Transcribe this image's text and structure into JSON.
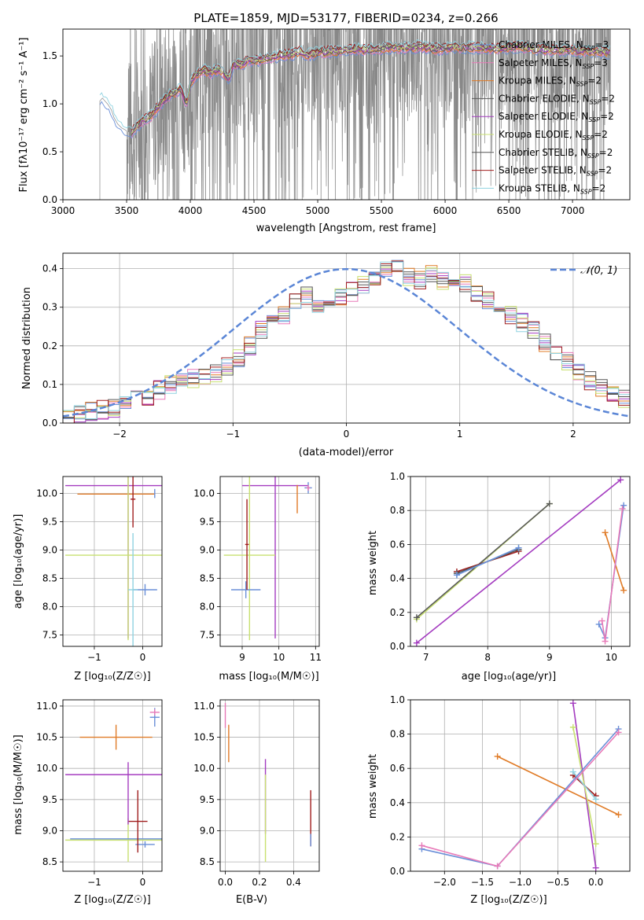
{
  "colors": {
    "chabrier_miles": "#6a8fd8",
    "salpeter_miles": "#e87ab8",
    "kroupa_miles": "#e07b27",
    "chabrier_elodie": "#5a5a5a",
    "salpeter_elodie": "#a43cc0",
    "kroupa_elodie": "#c8e070",
    "chabrier_stelib": "#555555",
    "salpeter_stelib": "#a01e1e",
    "kroupa_stelib": "#8fd2e0",
    "observed": "#888888",
    "gaussian": "#5b86d6",
    "grid": "#b0b0b0"
  },
  "chart_data": [
    {
      "id": "spectrum",
      "type": "line",
      "title": "PLATE=1859, MJD=53177, FIBERID=0234, z=0.266",
      "xlabel": "wavelength [Angstrom, rest frame]",
      "ylabel": "Flux [f$_\\lambda$ 10$^{-17}$ erg cm$^{-2}$ s$^{-1}$ A$^{-1}$]",
      "ylabel_display": "Flux [fλ10⁻¹⁷ erg cm⁻² s⁻¹ A⁻¹]",
      "xlim": [
        3000,
        7450
      ],
      "ylim": [
        0,
        1.78
      ],
      "xticks": [
        "3000",
        "3500",
        "4000",
        "4500",
        "5000",
        "5500",
        "6000",
        "6500",
        "7000"
      ],
      "yticks": [
        "0.0",
        "0.5",
        "1.0",
        "1.5"
      ],
      "legend_position": "right",
      "legend": [
        {
          "label": "Chabrier MILES, N",
          "sub": "SSP",
          "tail": "=3",
          "color_key": "chabrier_miles"
        },
        {
          "label": "Salpeter MILES, N",
          "sub": "SSP",
          "tail": "=3",
          "color_key": "salpeter_miles"
        },
        {
          "label": "Kroupa MILES, N",
          "sub": "SSP",
          "tail": "=2",
          "color_key": "kroupa_miles"
        },
        {
          "label": "Chabrier ELODIE, N",
          "sub": "SSP",
          "tail": "=2",
          "color_key": "chabrier_elodie"
        },
        {
          "label": "Salpeter ELODIE, N",
          "sub": "SSP",
          "tail": "=2",
          "color_key": "salpeter_elodie"
        },
        {
          "label": "Kroupa ELODIE, N",
          "sub": "SSP",
          "tail": "=2",
          "color_key": "kroupa_elodie"
        },
        {
          "label": "Chabrier STELIB, N",
          "sub": "SSP",
          "tail": "=2",
          "color_key": "chabrier_stelib"
        },
        {
          "label": "Salpeter STELIB, N",
          "sub": "SSP",
          "tail": "=2",
          "color_key": "salpeter_stelib"
        },
        {
          "label": "Kroupa STELIB, N",
          "sub": "SSP",
          "tail": "=2",
          "color_key": "kroupa_stelib"
        }
      ],
      "observed_start": 3290,
      "observed_noise_from": 3500,
      "model_curve": [
        [
          3290,
          1.03
        ],
        [
          3310,
          1.06
        ],
        [
          3350,
          1.0
        ],
        [
          3380,
          0.94
        ],
        [
          3400,
          0.86
        ],
        [
          3430,
          0.79
        ],
        [
          3460,
          0.75
        ],
        [
          3500,
          0.72
        ],
        [
          3540,
          0.7
        ],
        [
          3580,
          0.76
        ],
        [
          3620,
          0.82
        ],
        [
          3680,
          0.86
        ],
        [
          3720,
          0.92
        ],
        [
          3780,
          1.02
        ],
        [
          3830,
          1.08
        ],
        [
          3880,
          1.12
        ],
        [
          3930,
          1.15
        ],
        [
          3970,
          0.98
        ],
        [
          4000,
          1.22
        ],
        [
          4050,
          1.3
        ],
        [
          4100,
          1.36
        ],
        [
          4150,
          1.32
        ],
        [
          4200,
          1.35
        ],
        [
          4250,
          1.34
        ],
        [
          4300,
          1.25
        ],
        [
          4340,
          1.42
        ],
        [
          4400,
          1.4
        ],
        [
          4450,
          1.46
        ],
        [
          4500,
          1.45
        ],
        [
          4600,
          1.47
        ],
        [
          4700,
          1.5
        ],
        [
          4800,
          1.52
        ],
        [
          4862,
          1.55
        ],
        [
          4900,
          1.51
        ],
        [
          5000,
          1.53
        ],
        [
          5100,
          1.55
        ],
        [
          5200,
          1.55
        ],
        [
          5300,
          1.57
        ],
        [
          5400,
          1.56
        ],
        [
          5500,
          1.58
        ],
        [
          5600,
          1.59
        ],
        [
          5700,
          1.58
        ],
        [
          5800,
          1.6
        ],
        [
          5890,
          1.57
        ],
        [
          6000,
          1.58
        ],
        [
          6200,
          1.59
        ],
        [
          6400,
          1.57
        ],
        [
          6563,
          1.6
        ],
        [
          6700,
          1.57
        ],
        [
          6900,
          1.56
        ],
        [
          7100,
          1.55
        ],
        [
          7300,
          1.54
        ]
      ]
    },
    {
      "id": "residuals",
      "type": "histogram",
      "xlabel": "(data-model)/error",
      "ylabel": "Normed distribution",
      "xlim": [
        -2.5,
        2.5
      ],
      "ylim": [
        0,
        0.44
      ],
      "xticks": [
        "−2",
        "−1",
        "0",
        "1",
        "2"
      ],
      "yticks": [
        "0.0",
        "0.1",
        "0.2",
        "0.3",
        "0.4"
      ],
      "legend_label": "𝒩(0, 1)",
      "legend_position": "top-right",
      "bin_start": -2.5,
      "bin_width": 0.1,
      "values": [
        0.02,
        0.025,
        0.03,
        0.035,
        0.04,
        0.05,
        0.06,
        0.07,
        0.085,
        0.1,
        0.105,
        0.115,
        0.12,
        0.13,
        0.145,
        0.17,
        0.2,
        0.24,
        0.26,
        0.28,
        0.31,
        0.33,
        0.3,
        0.31,
        0.33,
        0.34,
        0.36,
        0.38,
        0.4,
        0.41,
        0.38,
        0.37,
        0.39,
        0.37,
        0.38,
        0.36,
        0.34,
        0.32,
        0.3,
        0.28,
        0.26,
        0.24,
        0.21,
        0.18,
        0.16,
        0.13,
        0.11,
        0.09,
        0.075,
        0.06
      ]
    },
    {
      "id": "Z_vs_age",
      "type": "errorbar",
      "xlabel": "Z [log₁₀(Z/Z☉)]",
      "ylabel": "age  [log₁₀(age/yr)]",
      "xlim": [
        -1.65,
        0.4
      ],
      "ylim": [
        7.3,
        10.3
      ],
      "xticks": [
        "−1",
        "0"
      ],
      "yticks": [
        "7.5",
        "8.0",
        "8.5",
        "9.0",
        "9.5",
        "10.0"
      ],
      "points": [
        {
          "color_key": "salpeter_elodie",
          "x": -0.3,
          "xerr": 1.3,
          "y": 10.14,
          "yerr": 2.7
        },
        {
          "color_key": "kroupa_miles",
          "x": -0.55,
          "xerr": 0.8,
          "y": 9.99,
          "yerr": 0.0
        },
        {
          "color_key": "kroupa_elodie",
          "x": -0.3,
          "xerr": 1.3,
          "y": 8.91,
          "yerr": 1.5
        },
        {
          "color_key": "chabrier_miles",
          "x": 0.05,
          "xerr": 0.25,
          "y": 8.3,
          "yerr": 0.1
        },
        {
          "color_key": "kroupa_stelib",
          "x": -0.2,
          "xerr": 0.1,
          "y": 8.3,
          "yerr": 1.0
        },
        {
          "color_key": "salpeter_stelib",
          "x": -0.2,
          "xerr": 0.05,
          "y": 9.9,
          "yerr": 0.5
        },
        {
          "color_key": "chabrier_miles",
          "x": 0.25,
          "xerr": 0.0,
          "y": 10.0,
          "yerr": 0.08
        }
      ]
    },
    {
      "id": "mass_vs_age",
      "type": "errorbar",
      "xlabel": "mass [log₁₀(M/M☉)]",
      "ylabel": "",
      "xlim": [
        8.4,
        11.1
      ],
      "ylim": [
        7.3,
        10.3
      ],
      "xticks": [
        "9",
        "10",
        "11"
      ],
      "yticks": [
        "7.5",
        "8.0",
        "8.5",
        "9.0",
        "9.5",
        "10.0"
      ],
      "points": [
        {
          "color_key": "salpeter_elodie",
          "x": 9.9,
          "xerr": 0.9,
          "y": 10.14,
          "yerr": 2.7
        },
        {
          "color_key": "kroupa_elodie",
          "x": 9.2,
          "xerr": 0.7,
          "y": 8.91,
          "yerr": 1.5
        },
        {
          "color_key": "chabrier_miles",
          "x": 9.1,
          "xerr": 0.4,
          "y": 8.3,
          "yerr": 0.15
        },
        {
          "color_key": "salpeter_stelib",
          "x": 9.13,
          "xerr": 0.05,
          "y": 9.1,
          "yerr": 0.8
        },
        {
          "color_key": "kroupa_miles",
          "x": 10.5,
          "xerr": 0.0,
          "y": 9.9,
          "yerr": 0.25
        },
        {
          "color_key": "chabrier_miles",
          "x": 10.8,
          "xerr": 0.1,
          "y": 10.1,
          "yerr": 0.1
        },
        {
          "color_key": "salpeter_miles",
          "x": 10.8,
          "xerr": 0.05,
          "y": 10.1,
          "yerr": 0.05
        }
      ]
    },
    {
      "id": "age_vs_weight",
      "type": "line",
      "xlabel": "age  [log₁₀(age/yr)]",
      "ylabel": "mass weight",
      "xlim": [
        6.75,
        10.3
      ],
      "ylim": [
        0,
        1.0
      ],
      "xticks": [
        "7",
        "8",
        "9",
        "10"
      ],
      "yticks": [
        "0.0",
        "0.2",
        "0.4",
        "0.6",
        "0.8",
        "1.0"
      ],
      "series": [
        {
          "color_key": "salpeter_elodie",
          "points": [
            [
              6.85,
              0.02
            ],
            [
              10.15,
              0.98
            ]
          ]
        },
        {
          "color_key": "kroupa_elodie",
          "points": [
            [
              6.85,
              0.16
            ],
            [
              9.0,
              0.84
            ]
          ]
        },
        {
          "color_key": "chabrier_elodie",
          "points": [
            [
              6.85,
              0.17
            ],
            [
              9.0,
              0.84
            ]
          ]
        },
        {
          "color_key": "salpeter_stelib",
          "points": [
            [
              7.5,
              0.44
            ],
            [
              8.5,
              0.56
            ]
          ]
        },
        {
          "color_key": "chabrier_stelib",
          "points": [
            [
              7.5,
              0.43
            ],
            [
              8.5,
              0.57
            ]
          ]
        },
        {
          "color_key": "kroupa_stelib",
          "points": [
            [
              7.5,
              0.42
            ],
            [
              8.5,
              0.58
            ]
          ]
        },
        {
          "color_key": "chabrier_miles",
          "points": [
            [
              7.5,
              0.42
            ],
            [
              8.5,
              0.58
            ]
          ]
        },
        {
          "color_key": "kroupa_miles",
          "points": [
            [
              9.9,
              0.67
            ],
            [
              10.2,
              0.33
            ]
          ]
        },
        {
          "color_key": "chabrier_miles",
          "points": [
            [
              9.8,
              0.13
            ],
            [
              9.9,
              0.05
            ],
            [
              10.2,
              0.83
            ]
          ]
        },
        {
          "color_key": "salpeter_miles",
          "points": [
            [
              9.85,
              0.15
            ],
            [
              9.9,
              0.03
            ],
            [
              10.18,
              0.81
            ]
          ]
        }
      ]
    },
    {
      "id": "Z_vs_mass",
      "type": "errorbar",
      "xlabel": "Z [log₁₀(Z/Z☉)]",
      "ylabel": "mass [log₁₀(M/M☉)]",
      "xlim": [
        -1.65,
        0.4
      ],
      "ylim": [
        8.35,
        11.1
      ],
      "xticks": [
        "−1",
        "0"
      ],
      "yticks": [
        "8.5",
        "9.0",
        "9.5",
        "10.0",
        "10.5",
        "11.0"
      ],
      "points": [
        {
          "color_key": "salpeter_elodie",
          "x": -0.3,
          "xerr": 1.3,
          "y": 9.9,
          "yerr": 0.0
        },
        {
          "color_key": "kroupa_miles",
          "x": -0.55,
          "xerr": 0.75,
          "y": 10.5,
          "yerr": 0.2
        },
        {
          "color_key": "kroupa_elodie",
          "x": -0.3,
          "xerr": 1.3,
          "y": 8.85,
          "yerr": 0.35
        },
        {
          "color_key": "chabrier_miles",
          "x": -0.5,
          "xerr": 1.0,
          "y": 8.87,
          "yerr": 0.0
        },
        {
          "color_key": "chabrier_miles",
          "x": 0.05,
          "xerr": 0.2,
          "y": 8.78,
          "yerr": 0.05
        },
        {
          "color_key": "salpeter_stelib",
          "x": -0.1,
          "xerr": 0.2,
          "y": 9.15,
          "yerr": 0.5
        },
        {
          "color_key": "salpeter_elodie",
          "x": -0.3,
          "xerr": 0.0,
          "y": 9.6,
          "yerr": 0.5
        },
        {
          "color_key": "chabrier_miles",
          "x": 0.25,
          "xerr": 0.1,
          "y": 10.82,
          "yerr": 0.15
        },
        {
          "color_key": "salpeter_miles",
          "x": 0.25,
          "xerr": 0.1,
          "y": 10.9,
          "yerr": 0.05
        }
      ]
    },
    {
      "id": "ebv_vs_mass",
      "type": "errorbar",
      "xlabel": "E(B-V)",
      "ylabel": "",
      "xlim": [
        -0.03,
        0.55
      ],
      "ylim": [
        8.35,
        11.1
      ],
      "xticks": [
        "0.0",
        "0.2",
        "0.4"
      ],
      "yticks": [
        "8.5",
        "9.0",
        "9.5",
        "10.0",
        "10.5",
        "11.0"
      ],
      "points": [
        {
          "color_key": "salpeter_miles",
          "x": 0.0,
          "xerr": 0.0,
          "y": 10.85,
          "yerr": 0.2
        },
        {
          "color_key": "kroupa_miles",
          "x": 0.02,
          "xerr": 0.0,
          "y": 10.4,
          "yerr": 0.3
        },
        {
          "color_key": "salpeter_elodie",
          "x": 0.235,
          "xerr": 0.0,
          "y": 9.55,
          "yerr": 0.6
        },
        {
          "color_key": "kroupa_elodie",
          "x": 0.235,
          "xerr": 0.0,
          "y": 9.2,
          "yerr": 0.7
        },
        {
          "color_key": "salpeter_stelib",
          "x": 0.5,
          "xerr": 0.0,
          "y": 9.2,
          "yerr": 0.45
        },
        {
          "color_key": "chabrier_miles",
          "x": 0.5,
          "xerr": 0.0,
          "y": 8.85,
          "yerr": 0.1
        }
      ]
    },
    {
      "id": "Z_vs_weight",
      "type": "line",
      "xlabel": "Z [log₁₀(Z/Z☉)]",
      "ylabel": "mass weight",
      "xlim": [
        -2.45,
        0.45
      ],
      "ylim": [
        0,
        1.0
      ],
      "xticks": [
        "−2.0",
        "−1.5",
        "−1.0",
        "−0.5",
        "0.0"
      ],
      "yticks": [
        "0.0",
        "0.2",
        "0.4",
        "0.6",
        "0.8",
        "1.0"
      ],
      "series": [
        {
          "color_key": "kroupa_miles",
          "points": [
            [
              -1.3,
              0.67
            ],
            [
              0.3,
              0.33
            ]
          ]
        },
        {
          "color_key": "salpeter_elodie",
          "points": [
            [
              -0.3,
              0.98
            ],
            [
              0.0,
              0.02
            ]
          ]
        },
        {
          "color_key": "kroupa_elodie",
          "points": [
            [
              -0.3,
              0.84
            ],
            [
              0.0,
              0.16
            ]
          ]
        },
        {
          "color_key": "salpeter_stelib",
          "points": [
            [
              -0.3,
              0.56
            ],
            [
              0.0,
              0.44
            ]
          ]
        },
        {
          "color_key": "kroupa_stelib",
          "points": [
            [
              -0.3,
              0.58
            ],
            [
              0.0,
              0.42
            ]
          ]
        },
        {
          "color_key": "chabrier_miles",
          "points": [
            [
              -2.3,
              0.13
            ],
            [
              -1.3,
              0.03
            ],
            [
              0.3,
              0.83
            ]
          ]
        },
        {
          "color_key": "salpeter_miles",
          "points": [
            [
              -2.3,
              0.15
            ],
            [
              -1.3,
              0.03
            ],
            [
              0.3,
              0.81
            ]
          ]
        }
      ]
    }
  ]
}
